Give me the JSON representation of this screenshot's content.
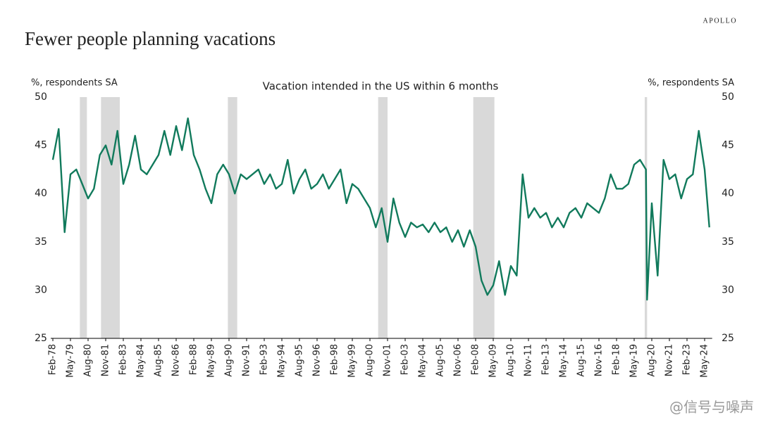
{
  "brand": "APOLLO",
  "chart_data": {
    "type": "line",
    "title": "Fewer people planning vacations",
    "subtitle": "Vacation intended in the US within 6 months",
    "y_label": "%, respondents SA",
    "y2_label": "%, respondents SA",
    "ylim": [
      25,
      50
    ],
    "yticks": [
      25,
      30,
      35,
      40,
      45,
      50
    ],
    "y2lim": [
      25,
      50
    ],
    "y2ticks": [
      25,
      30,
      35,
      40,
      45,
      50
    ],
    "xticks": [
      "Feb-78",
      "May-79",
      "Aug-80",
      "Nov-81",
      "Feb-83",
      "May-84",
      "Aug-85",
      "Nov-86",
      "Feb-88",
      "May-89",
      "Aug-90",
      "Nov-91",
      "Feb-93",
      "May-94",
      "Aug-95",
      "Nov-96",
      "Feb-98",
      "May-99",
      "Aug-00",
      "Nov-01",
      "Feb-03",
      "May-04",
      "Aug-05",
      "Nov-06",
      "Feb-08",
      "May-09",
      "Aug-10",
      "Nov-11",
      "Feb-13",
      "May-14",
      "Aug-15",
      "Nov-16",
      "Feb-18",
      "May-19",
      "Aug-20",
      "Nov-21",
      "Feb-23",
      "May-24"
    ],
    "recessions": [
      {
        "start": "Jan-80",
        "end": "Jul-80"
      },
      {
        "start": "Jul-81",
        "end": "Nov-82"
      },
      {
        "start": "Jul-90",
        "end": "Mar-91"
      },
      {
        "start": "Mar-01",
        "end": "Nov-01"
      },
      {
        "start": "Dec-07",
        "end": "Jun-09"
      },
      {
        "start": "Feb-20",
        "end": "Apr-20"
      }
    ],
    "x": [
      "Feb-78",
      "Jul-78",
      "Dec-78",
      "May-79",
      "Oct-79",
      "Mar-80",
      "Aug-80",
      "Jan-81",
      "Jun-81",
      "Nov-81",
      "Apr-82",
      "Sep-82",
      "Feb-83",
      "Jul-83",
      "Dec-83",
      "May-84",
      "Oct-84",
      "Mar-85",
      "Aug-85",
      "Jan-86",
      "Jun-86",
      "Nov-86",
      "Apr-87",
      "Sep-87",
      "Feb-88",
      "Jul-88",
      "Dec-88",
      "May-89",
      "Oct-89",
      "Mar-90",
      "Aug-90",
      "Jan-91",
      "Jun-91",
      "Nov-91",
      "Apr-92",
      "Sep-92",
      "Feb-93",
      "Jul-93",
      "Dec-93",
      "May-94",
      "Oct-94",
      "Mar-95",
      "Aug-95",
      "Jan-96",
      "Jun-96",
      "Nov-96",
      "Apr-97",
      "Sep-97",
      "Feb-98",
      "Jul-98",
      "Dec-98",
      "May-99",
      "Oct-99",
      "Mar-00",
      "Aug-00",
      "Jan-01",
      "Jun-01",
      "Nov-01",
      "Apr-02",
      "Sep-02",
      "Feb-03",
      "Jul-03",
      "Dec-03",
      "May-04",
      "Oct-04",
      "Mar-05",
      "Aug-05",
      "Jan-06",
      "Jun-06",
      "Nov-06",
      "Apr-07",
      "Sep-07",
      "Feb-08",
      "Jul-08",
      "Dec-08",
      "May-09",
      "Oct-09",
      "Mar-10",
      "Aug-10",
      "Jan-11",
      "Jun-11",
      "Nov-11",
      "Apr-12",
      "Sep-12",
      "Feb-13",
      "Jul-13",
      "Dec-13",
      "May-14",
      "Oct-14",
      "Mar-15",
      "Aug-15",
      "Jan-16",
      "Jun-16",
      "Nov-16",
      "Apr-17",
      "Sep-17",
      "Feb-18",
      "Jul-18",
      "Dec-18",
      "May-19",
      "Oct-19",
      "Mar-20",
      "Apr-20",
      "Aug-20",
      "Jan-21",
      "Jun-21",
      "Nov-21",
      "Apr-22",
      "Sep-22",
      "Feb-23",
      "Jul-23",
      "Dec-23",
      "May-24",
      "Sep-24"
    ],
    "series": [
      {
        "color": "#117a5c",
        "values": [
          43.5,
          46.7,
          36,
          42,
          42.5,
          41,
          39.5,
          40.5,
          44,
          45,
          43,
          46.5,
          41,
          43,
          46,
          42.5,
          42,
          43,
          44,
          46.5,
          44,
          47,
          44.5,
          47.8,
          44,
          42.5,
          40.5,
          39,
          42,
          43,
          42,
          40,
          42,
          41.5,
          42,
          42.5,
          41,
          42,
          40.5,
          41,
          43.5,
          40,
          41.5,
          42.5,
          40.5,
          41,
          42,
          40.5,
          41.5,
          42.5,
          39,
          41,
          40.5,
          39.5,
          38.5,
          36.5,
          38.5,
          35,
          39.5,
          37,
          35.5,
          37,
          36.5,
          36.8,
          36,
          37,
          36,
          36.5,
          35,
          36.2,
          34.5,
          36.2,
          34.5,
          31,
          29.5,
          30.5,
          33,
          29.5,
          32.5,
          31.5,
          42,
          37.5,
          38.5,
          37.5,
          38,
          36.5,
          37.5,
          36.5,
          38,
          38.5,
          37.5,
          39,
          38.5,
          38,
          39.5,
          42,
          40.5,
          40.5,
          41,
          43,
          43.5,
          42.5,
          29,
          39,
          31.5,
          43.5,
          41.5,
          42,
          39.5,
          41.5,
          42,
          46.5,
          42.5,
          36.5
        ]
      }
    ],
    "watermark": "@信号与噪声"
  }
}
